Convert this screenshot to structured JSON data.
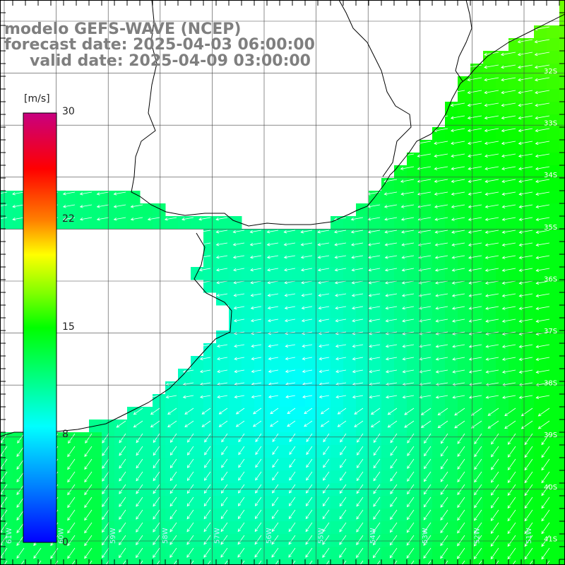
{
  "title": {
    "model": "modelo GEFS-WAVE (NCEP)",
    "forecast": "forecast date: 2025-04-03 06:00:00",
    "valid": "valid date: 2025-04-09 03:00:00"
  },
  "colorbar": {
    "unit": "[m/s]",
    "ticks": [
      {
        "label": "30",
        "value": 30
      },
      {
        "label": "22",
        "value": 22
      },
      {
        "label": "15",
        "value": 15
      },
      {
        "label": "8",
        "value": 8
      },
      {
        "label": "0",
        "value": 0
      }
    ],
    "colors": [
      "#0000ff",
      "#0080ff",
      "#00ffff",
      "#00ff00",
      "#ffff00",
      "#ff8000",
      "#ff0000",
      "#c80080"
    ]
  },
  "map": {
    "lat_labels": [
      "32S",
      "33S",
      "34S",
      "35S",
      "36S",
      "37S",
      "38S",
      "39S",
      "40S",
      "41S"
    ],
    "lon_labels": [
      "61W",
      "60W",
      "59W",
      "58W",
      "57W",
      "56W",
      "55W",
      "54W",
      "53W",
      "52W",
      "51W",
      "50W"
    ]
  }
}
